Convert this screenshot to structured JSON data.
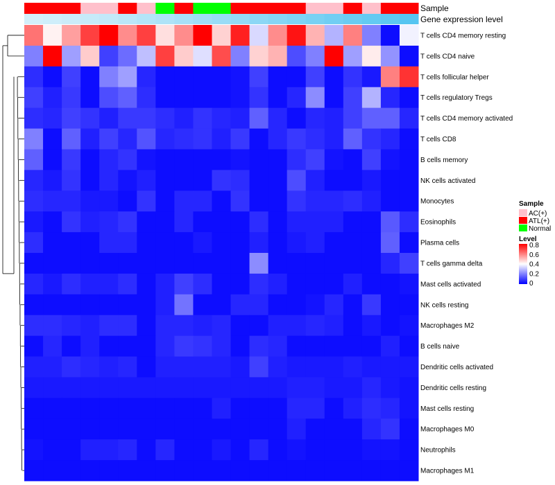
{
  "chart_data": {
    "type": "heatmap",
    "title": "",
    "annotations": {
      "sample_track_label": "Sample",
      "level_track_label": "Gene expression level"
    },
    "sample_groups": [
      "ATL(+)",
      "ATL(+)",
      "ATL(+)",
      "AC(+)",
      "AC(+)",
      "ATL(+)",
      "AC(+)",
      "Normal",
      "ATL(+)",
      "Normal",
      "Normal",
      "ATL(+)",
      "ATL(+)",
      "ATL(+)",
      "ATL(+)",
      "AC(+)",
      "AC(+)",
      "ATL(+)",
      "AC(+)",
      "ATL(+)",
      "ATL(+)"
    ],
    "expression_track": [
      0.02,
      0.05,
      0.08,
      0.12,
      0.15,
      0.2,
      0.25,
      0.3,
      0.35,
      0.4,
      0.45,
      0.5,
      0.55,
      0.6,
      0.65,
      0.7,
      0.75,
      0.8,
      0.85,
      0.9,
      0.95
    ],
    "row_labels": [
      "T cells CD4 memory resting",
      "T cells CD4 naive",
      "T cells follicular helper",
      "T cells regulatory  Tregs",
      "T cells CD4 memory activated",
      "T cells CD8",
      "B cells memory",
      "NK cells activated",
      "Monocytes",
      "Eosinophils",
      "Plasma cells",
      "T cells gamma delta",
      "Mast cells activated",
      "NK cells resting",
      "Macrophages M2",
      "B cells naive",
      "Dendritic cells activated",
      "Dendritic cells resting",
      "Mast cells resting",
      "Macrophages M0",
      "Neutrophils",
      "Macrophages M1"
    ],
    "values": [
      [
        0.62,
        0.42,
        0.55,
        0.7,
        0.8,
        0.58,
        0.7,
        0.45,
        0.58,
        0.8,
        0.47,
        0.75,
        0.34,
        0.58,
        0.77,
        0.52,
        0.28,
        0.6,
        0.2,
        0.02,
        0.38
      ],
      [
        0.2,
        0.8,
        0.25,
        0.48,
        0.1,
        0.17,
        0.3,
        0.7,
        0.48,
        0.35,
        0.68,
        0.2,
        0.47,
        0.52,
        0.12,
        0.2,
        0.8,
        0.25,
        0.43,
        0.23,
        0.02
      ],
      [
        0.07,
        0.02,
        0.1,
        0.02,
        0.2,
        0.25,
        0.06,
        0.02,
        0.02,
        0.02,
        0.02,
        0.03,
        0.1,
        0.02,
        0.02,
        0.1,
        0.02,
        0.08,
        0.04,
        0.6,
        0.72
      ],
      [
        0.1,
        0.05,
        0.09,
        0.02,
        0.12,
        0.15,
        0.07,
        0.02,
        0.02,
        0.02,
        0.02,
        0.03,
        0.08,
        0.02,
        0.06,
        0.22,
        0.02,
        0.1,
        0.28,
        0.06,
        0.02
      ],
      [
        0.07,
        0.06,
        0.1,
        0.08,
        0.05,
        0.09,
        0.09,
        0.07,
        0.05,
        0.08,
        0.06,
        0.05,
        0.15,
        0.06,
        0.02,
        0.06,
        0.05,
        0.1,
        0.15,
        0.15,
        0.06
      ],
      [
        0.2,
        0.02,
        0.15,
        0.05,
        0.1,
        0.06,
        0.13,
        0.06,
        0.07,
        0.08,
        0.05,
        0.09,
        0.02,
        0.06,
        0.09,
        0.07,
        0.05,
        0.15,
        0.08,
        0.06,
        0.02
      ],
      [
        0.15,
        0.02,
        0.09,
        0.02,
        0.06,
        0.08,
        0.03,
        0.02,
        0.02,
        0.02,
        0.02,
        0.03,
        0.02,
        0.02,
        0.07,
        0.1,
        0.03,
        0.02,
        0.1,
        0.03,
        0.02
      ],
      [
        0.06,
        0.04,
        0.08,
        0.02,
        0.06,
        0.03,
        0.05,
        0.02,
        0.02,
        0.02,
        0.08,
        0.07,
        0.02,
        0.02,
        0.12,
        0.05,
        0.02,
        0.02,
        0.04,
        0.02,
        0.02
      ],
      [
        0.07,
        0.06,
        0.06,
        0.04,
        0.04,
        0.02,
        0.08,
        0.02,
        0.06,
        0.06,
        0.02,
        0.08,
        0.02,
        0.02,
        0.08,
        0.06,
        0.06,
        0.07,
        0.05,
        0.02,
        0.02
      ],
      [
        0.04,
        0.02,
        0.08,
        0.05,
        0.06,
        0.08,
        0.02,
        0.02,
        0.06,
        0.02,
        0.02,
        0.02,
        0.07,
        0.02,
        0.05,
        0.05,
        0.05,
        0.02,
        0.02,
        0.14,
        0.07
      ],
      [
        0.07,
        0.02,
        0.02,
        0.02,
        0.06,
        0.06,
        0.02,
        0.02,
        0.02,
        0.04,
        0.02,
        0.02,
        0.05,
        0.02,
        0.04,
        0.05,
        0.02,
        0.02,
        0.02,
        0.15,
        0.02
      ],
      [
        0.02,
        0.02,
        0.02,
        0.02,
        0.02,
        0.02,
        0.02,
        0.02,
        0.02,
        0.02,
        0.02,
        0.02,
        0.22,
        0.02,
        0.02,
        0.02,
        0.02,
        0.02,
        0.02,
        0.06,
        0.1
      ],
      [
        0.06,
        0.04,
        0.07,
        0.05,
        0.05,
        0.07,
        0.02,
        0.05,
        0.1,
        0.07,
        0.02,
        0.02,
        0.07,
        0.05,
        0.02,
        0.02,
        0.02,
        0.05,
        0.02,
        0.02,
        0.03
      ],
      [
        0.02,
        0.02,
        0.02,
        0.02,
        0.02,
        0.02,
        0.02,
        0.05,
        0.18,
        0.02,
        0.02,
        0.06,
        0.06,
        0.02,
        0.02,
        0.03,
        0.06,
        0.02,
        0.09,
        0.02,
        0.02
      ],
      [
        0.07,
        0.07,
        0.06,
        0.05,
        0.07,
        0.07,
        0.02,
        0.06,
        0.06,
        0.05,
        0.06,
        0.02,
        0.02,
        0.05,
        0.05,
        0.06,
        0.05,
        0.02,
        0.04,
        0.02,
        0.03
      ],
      [
        0.02,
        0.06,
        0.02,
        0.05,
        0.02,
        0.02,
        0.02,
        0.06,
        0.09,
        0.08,
        0.06,
        0.02,
        0.07,
        0.06,
        0.02,
        0.02,
        0.02,
        0.02,
        0.02,
        0.05,
        0.02
      ],
      [
        0.05,
        0.05,
        0.07,
        0.06,
        0.05,
        0.06,
        0.02,
        0.05,
        0.05,
        0.05,
        0.05,
        0.04,
        0.1,
        0.05,
        0.04,
        0.04,
        0.04,
        0.05,
        0.04,
        0.04,
        0.04
      ],
      [
        0.04,
        0.04,
        0.04,
        0.04,
        0.04,
        0.04,
        0.04,
        0.04,
        0.04,
        0.04,
        0.04,
        0.04,
        0.04,
        0.04,
        0.05,
        0.05,
        0.04,
        0.04,
        0.06,
        0.04,
        0.03
      ],
      [
        0.02,
        0.02,
        0.02,
        0.02,
        0.02,
        0.02,
        0.02,
        0.02,
        0.02,
        0.02,
        0.05,
        0.02,
        0.02,
        0.02,
        0.06,
        0.06,
        0.02,
        0.05,
        0.07,
        0.06,
        0.03
      ],
      [
        0.02,
        0.02,
        0.02,
        0.02,
        0.02,
        0.02,
        0.02,
        0.02,
        0.02,
        0.02,
        0.02,
        0.02,
        0.02,
        0.02,
        0.05,
        0.02,
        0.02,
        0.02,
        0.06,
        0.08,
        0.02
      ],
      [
        0.03,
        0.02,
        0.02,
        0.05,
        0.05,
        0.06,
        0.02,
        0.06,
        0.02,
        0.02,
        0.04,
        0.02,
        0.06,
        0.02,
        0.03,
        0.02,
        0.02,
        0.02,
        0.03,
        0.03,
        0.02
      ],
      [
        0.02,
        0.02,
        0.02,
        0.02,
        0.02,
        0.02,
        0.02,
        0.02,
        0.02,
        0.02,
        0.02,
        0.02,
        0.02,
        0.02,
        0.02,
        0.02,
        0.02,
        0.02,
        0.02,
        0.02,
        0.02
      ]
    ],
    "legend": {
      "sample_title": "Sample",
      "sample_items": [
        {
          "label": "AC(+)",
          "color": "#ffc0cb"
        },
        {
          "label": "ATL(+)",
          "color": "#ff0000"
        },
        {
          "label": "Normal",
          "color": "#00ff00"
        }
      ],
      "level_title": "Level",
      "level_ticks": [
        {
          "value": 0.8,
          "label": "0.8"
        },
        {
          "value": 0.6,
          "label": "0.6"
        },
        {
          "value": 0.4,
          "label": "0.4"
        },
        {
          "value": 0.2,
          "label": "0.2"
        },
        {
          "value": 0,
          "label": "0"
        }
      ]
    },
    "colors": {
      "low": "#0000ff",
      "mid": "#ffffff",
      "high": "#ff0000",
      "expr_low": "#d6f0fa",
      "expr_high": "#4fc3f0"
    },
    "color_range": [
      0,
      0.8
    ]
  }
}
